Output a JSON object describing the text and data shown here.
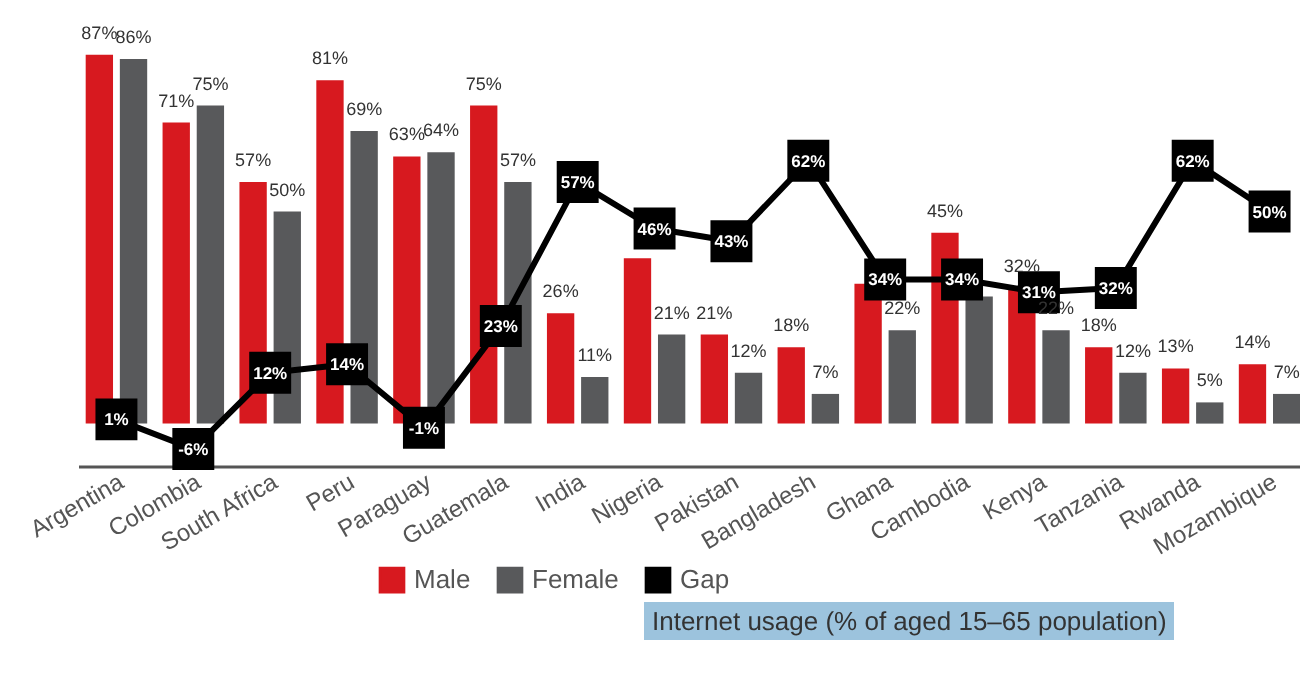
{
  "chart_data": {
    "type": "bar",
    "categories": [
      "Argentina",
      "Colombia",
      "South Africa",
      "Peru",
      "Paraguay",
      "Guatemala",
      "India",
      "Nigeria",
      "Pakistan",
      "Bangladesh",
      "Ghana",
      "Cambodia",
      "Kenya",
      "Tanzania",
      "Rwanda",
      "Mozambique"
    ],
    "series": [
      {
        "name": "Male",
        "color": "#d7191f",
        "values": [
          87,
          71,
          57,
          81,
          63,
          75,
          26,
          39,
          21,
          18,
          33,
          45,
          32,
          18,
          13,
          14
        ],
        "value_labels": [
          "87%",
          "71%",
          "57%",
          "81%",
          "63%",
          "75%",
          "26%",
          null,
          "21%",
          "18%",
          null,
          "45%",
          "32%",
          "18%",
          "13%",
          "14%"
        ]
      },
      {
        "name": "Female",
        "color": "#58595b",
        "values": [
          86,
          75,
          50,
          69,
          64,
          57,
          11,
          21,
          12,
          7,
          22,
          30,
          22,
          12,
          5,
          7
        ],
        "value_labels": [
          "86%",
          "75%",
          "50%",
          "69%",
          "64%",
          "57%",
          "11%",
          "21%",
          "12%",
          "7%",
          "22%",
          null,
          "22%",
          "12%",
          "5%",
          "7%"
        ]
      },
      {
        "name": "Gap",
        "type": "line",
        "color": "#000000",
        "marker": "square",
        "values": [
          1,
          -6,
          12,
          14,
          -1,
          23,
          57,
          46,
          43,
          62,
          34,
          34,
          31,
          32,
          62,
          50
        ],
        "value_labels": [
          "1%",
          "-6%",
          "12%",
          "14%",
          "-1%",
          "23%",
          "57%",
          "46%",
          "43%",
          "62%",
          "34%",
          "34%",
          "31%",
          "32%",
          "62%",
          "50%"
        ]
      }
    ],
    "legend": "bottom",
    "grid": false,
    "annotations": [
      "Internet usage (% of aged 15–65 population)"
    ]
  }
}
